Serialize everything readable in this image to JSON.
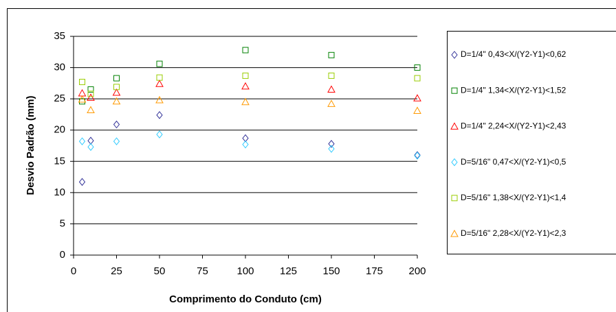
{
  "chart_data": {
    "type": "scatter",
    "x_label": "Comprimento do Conduto (cm)",
    "y_label": "Desvio Padrão (mm)",
    "xlim": [
      0,
      200
    ],
    "xticks": [
      0,
      25,
      50,
      75,
      100,
      125,
      150,
      175,
      200
    ],
    "ylim": [
      0,
      35
    ],
    "yticks": [
      0,
      5,
      10,
      15,
      20,
      25,
      30,
      35
    ],
    "grid": true,
    "legend": "right",
    "series": [
      {
        "name": "D=1/4\" 0,43<X/(Y2-Y1)<0,62",
        "color": "#333399",
        "marker": "diamond",
        "x": [
          5,
          10,
          25,
          50,
          100,
          150,
          200
        ],
        "values": [
          11.7,
          18.3,
          20.9,
          22.4,
          18.7,
          17.8,
          16.0
        ]
      },
      {
        "name": "D=1/4\" 1,34<X/(Y2-Y1)<1,52",
        "color": "#008000",
        "marker": "square",
        "x": [
          5,
          10,
          25,
          50,
          100,
          150,
          200
        ],
        "values": [
          24.6,
          26.5,
          28.3,
          30.6,
          32.8,
          32.0,
          30.0
        ]
      },
      {
        "name": "D=1/4\" 2,24<X/(Y2-Y1)<2,43",
        "color": "#ff0000",
        "marker": "triangle",
        "x": [
          5,
          10,
          25,
          50,
          100,
          150,
          200
        ],
        "values": [
          25.9,
          25.2,
          26.0,
          27.4,
          27.0,
          26.5,
          25.1
        ]
      },
      {
        "name": "D=5/16\" 0,47<X/(Y2-Y1)<0,5",
        "color": "#33ccff",
        "marker": "diamond",
        "x": [
          5,
          10,
          25,
          50,
          100,
          150,
          200
        ],
        "values": [
          18.2,
          17.3,
          18.2,
          19.3,
          17.7,
          17.0,
          15.9
        ]
      },
      {
        "name": "D=5/16\" 1,38<X/(Y2-Y1)<1,4",
        "color": "#99cc00",
        "marker": "square",
        "x": [
          5,
          10,
          25,
          50,
          100,
          150,
          200
        ],
        "values": [
          27.7,
          25.8,
          26.9,
          28.4,
          28.7,
          28.7,
          28.3
        ]
      },
      {
        "name": "D=5/16\" 2,28<X/(Y2-Y1)<2,3",
        "color": "#ff9900",
        "marker": "triangle",
        "x": [
          5,
          10,
          25,
          50,
          100,
          150,
          200
        ],
        "values": [
          24.9,
          23.2,
          24.6,
          24.8,
          24.5,
          24.2,
          23.1
        ]
      }
    ]
  }
}
